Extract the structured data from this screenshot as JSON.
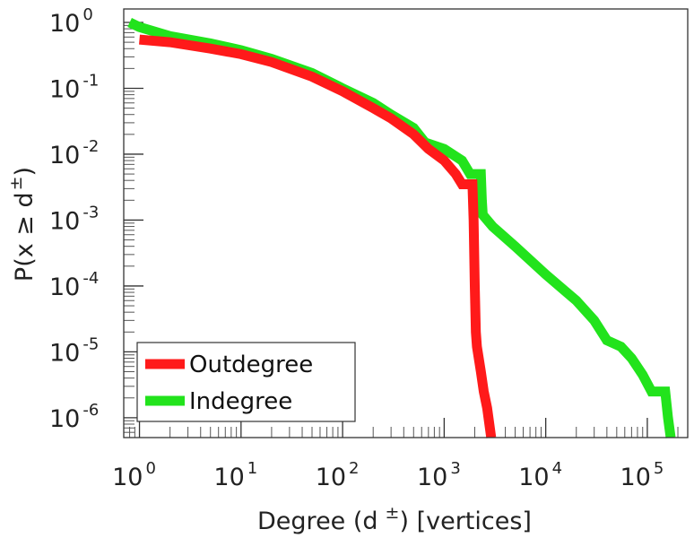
{
  "chart_data": {
    "type": "line",
    "x_scale": "log",
    "y_scale": "log",
    "xlim": [
      0.7,
      250000
    ],
    "ylim": [
      5e-07,
      1.6
    ],
    "xlabel": {
      "main": "Degree (d",
      "sup": "±",
      "tail": ") [vertices]"
    },
    "ylabel": {
      "main": "P(x ≥ d",
      "sup": "±",
      "tail": ")"
    },
    "x_ticks": [
      {
        "base": "10",
        "exp": "0",
        "value": 1
      },
      {
        "base": "10",
        "exp": "1",
        "value": 10
      },
      {
        "base": "10",
        "exp": "2",
        "value": 100
      },
      {
        "base": "10",
        "exp": "3",
        "value": 1000
      },
      {
        "base": "10",
        "exp": "4",
        "value": 10000
      },
      {
        "base": "10",
        "exp": "5",
        "value": 100000
      }
    ],
    "y_ticks": [
      {
        "base": "10",
        "exp": "0",
        "value": 1
      },
      {
        "base": "10",
        "exp": "-1",
        "value": 0.1
      },
      {
        "base": "10",
        "exp": "-2",
        "value": 0.01
      },
      {
        "base": "10",
        "exp": "-3",
        "value": 0.001
      },
      {
        "base": "10",
        "exp": "-4",
        "value": 0.0001
      },
      {
        "base": "10",
        "exp": "-5",
        "value": 1e-05
      },
      {
        "base": "10",
        "exp": "-6",
        "value": 1e-06
      }
    ],
    "grid": false,
    "legend_position": "bottom-left",
    "series": [
      {
        "name": "Outdegree",
        "color": "#ff1a1a",
        "points": [
          [
            1,
            0.55
          ],
          [
            2,
            0.5
          ],
          [
            5,
            0.4
          ],
          [
            10,
            0.33
          ],
          [
            20,
            0.25
          ],
          [
            50,
            0.15
          ],
          [
            100,
            0.09
          ],
          [
            200,
            0.05
          ],
          [
            300,
            0.035
          ],
          [
            500,
            0.02
          ],
          [
            700,
            0.012
          ],
          [
            1000,
            0.008
          ],
          [
            1300,
            0.005
          ],
          [
            1500,
            0.0035
          ],
          [
            1900,
            0.0035
          ],
          [
            1950,
            0.001
          ],
          [
            2000,
            0.0001
          ],
          [
            2050,
            2e-05
          ],
          [
            2100,
            1.2e-05
          ],
          [
            2300,
            5e-06
          ],
          [
            2450,
            2.5e-06
          ],
          [
            2650,
            1.4e-06
          ],
          [
            2900,
            5e-07
          ]
        ]
      },
      {
        "name": "Indegree",
        "color": "#22e31c",
        "points": [
          [
            0.8,
            1
          ],
          [
            1,
            0.85
          ],
          [
            2,
            0.62
          ],
          [
            5,
            0.48
          ],
          [
            10,
            0.38
          ],
          [
            20,
            0.28
          ],
          [
            50,
            0.17
          ],
          [
            100,
            0.1
          ],
          [
            200,
            0.06
          ],
          [
            300,
            0.04
          ],
          [
            500,
            0.025
          ],
          [
            650,
            0.015
          ],
          [
            1000,
            0.012
          ],
          [
            1500,
            0.008
          ],
          [
            1800,
            0.005
          ],
          [
            2300,
            0.005
          ],
          [
            2350,
            0.002
          ],
          [
            2400,
            0.0012
          ],
          [
            3000,
            0.0008
          ],
          [
            5000,
            0.0004
          ],
          [
            10000,
            0.00015
          ],
          [
            20000,
            6e-05
          ],
          [
            30000,
            3e-05
          ],
          [
            40000,
            1.5e-05
          ],
          [
            55000,
            1.2e-05
          ],
          [
            70000,
            8e-06
          ],
          [
            90000,
            4.5e-06
          ],
          [
            110000,
            2.5e-06
          ],
          [
            150000,
            2.5e-06
          ],
          [
            160000,
            1e-06
          ],
          [
            170000,
            5e-07
          ]
        ]
      }
    ]
  }
}
